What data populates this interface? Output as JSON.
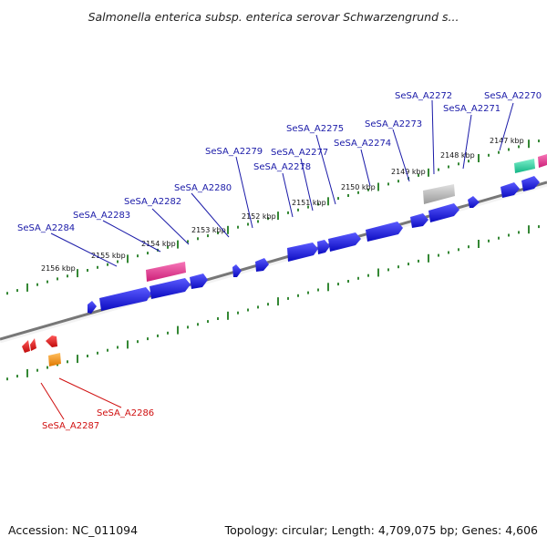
{
  "title": "Salmonella enterica subsp. enterica serovar Schwarzengrund s...",
  "footer": {
    "accession": "Accession: NC_011094",
    "summary": "Topology: circular; Length: 4,709,075 bp; Genes: 4,606"
  },
  "colors": {
    "forward_cds": "#1a1ae0",
    "reverse_cds": "#e01414",
    "rna": "#e0338a",
    "other": "#b8b8b8",
    "teal": "#22d3a0",
    "orange": "#f0900a",
    "backbone": "#777777",
    "ticks": "#1e7a1e",
    "forward_label": "#1a1aa8",
    "reverse_label": "#d01010"
  },
  "tick_labels": [
    "2147 kbp",
    "2148 kbp",
    "2149 kbp",
    "2150 kbp",
    "2151 kbp",
    "2152 kbp",
    "2153 kbp",
    "2154 kbp",
    "2155 kbp",
    "2156 kbp"
  ],
  "forward_gene_labels": [
    "SeSA_A2270",
    "SeSA_A2271",
    "SeSA_A2272",
    "SeSA_A2273",
    "SeSA_A2274",
    "SeSA_A2275",
    "SeSA_A2277",
    "SeSA_A2278",
    "SeSA_A2279",
    "SeSA_A2280",
    "SeSA_A2282",
    "SeSA_A2283",
    "SeSA_A2284"
  ],
  "reverse_gene_labels": [
    "SeSA_A2286",
    "SeSA_A2287"
  ]
}
